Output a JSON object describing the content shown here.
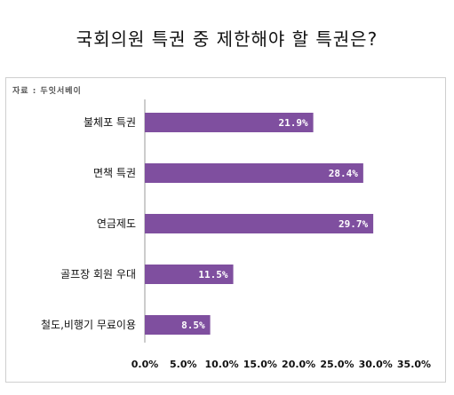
{
  "chart_data": {
    "type": "bar",
    "orientation": "horizontal",
    "title": "국회의원 특권 중 제한해야 할 특권은?",
    "source": "자료 : 두잇서베이",
    "categories": [
      "불체포 특권",
      "면책 특권",
      "연금제도",
      "골프장 회원 우대",
      "철도,비행기 무료이용"
    ],
    "values": [
      21.9,
      28.4,
      29.7,
      11.5,
      8.5
    ],
    "value_labels": [
      "21.9%",
      "28.4%",
      "29.7%",
      "11.5%",
      "8.5%"
    ],
    "x_ticks": [
      "0.0%",
      "5.0%",
      "10.0%",
      "15.0%",
      "20.0%",
      "25.0%",
      "30.0%",
      "35.0%"
    ],
    "xlim": [
      0,
      35
    ],
    "xlabel": "",
    "ylabel": "",
    "bar_color": "#7f4f9f",
    "grid": false
  }
}
